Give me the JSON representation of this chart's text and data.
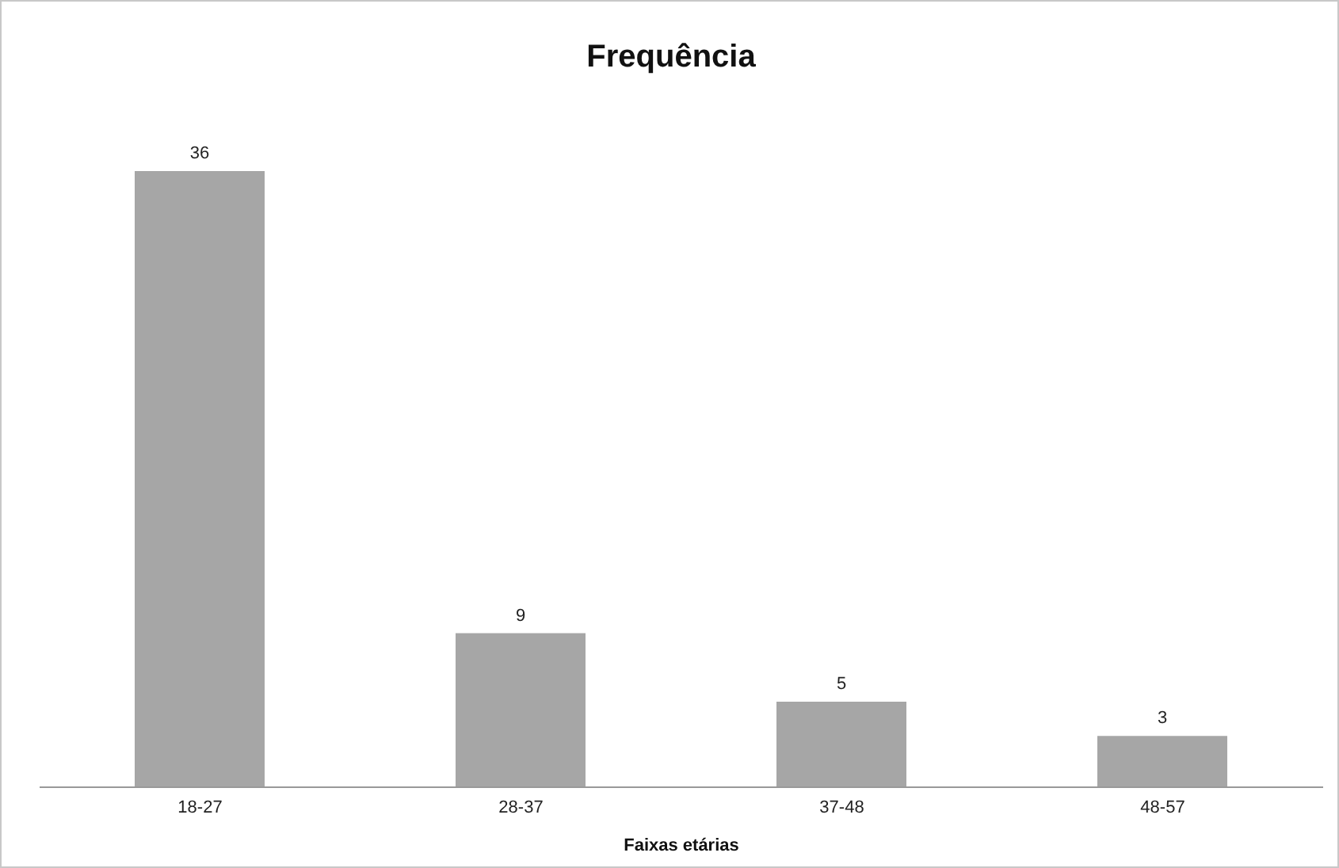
{
  "chart_data": {
    "type": "bar",
    "title": "Frequência",
    "xlabel": "Faixas etárias",
    "categories": [
      "18-27",
      "28-37",
      "37-48",
      "48-57"
    ],
    "values": [
      36,
      9,
      5,
      3
    ],
    "color": "#a6a6a6",
    "data_labels": true,
    "grid": false,
    "legend": false
  }
}
